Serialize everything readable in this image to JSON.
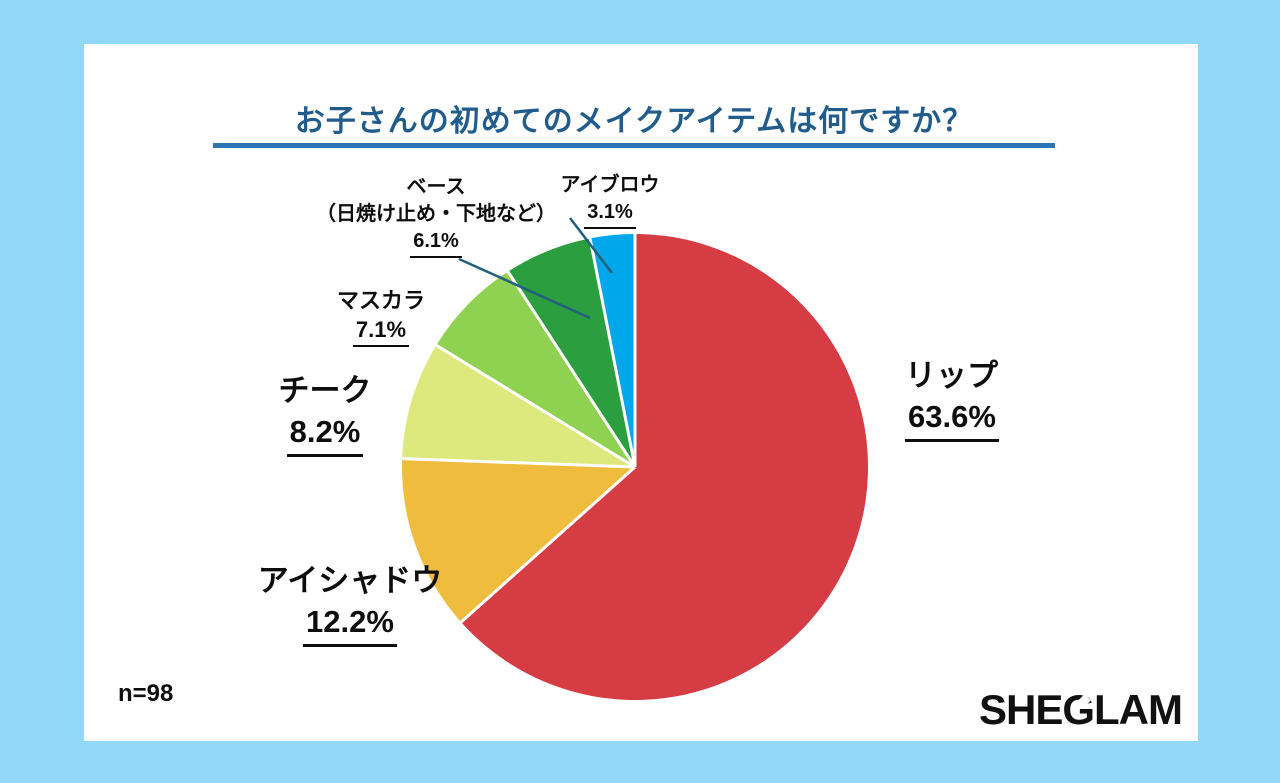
{
  "page": {
    "background_color": "#92D9F7",
    "card_color": "#FFFFFF"
  },
  "header": {
    "title": "お子さんの初めてのメイクアイテムは何ですか？",
    "title_color": "#215C8C",
    "underline_color": "#2E75B6"
  },
  "chart_data": {
    "type": "pie",
    "title": "お子さんの初めてのメイクアイテムは何ですか？",
    "unit": "%",
    "start_angle_deg": 0,
    "direction": "clockwise",
    "legend_position": "labels-around-pie",
    "sample_size": 98,
    "slices": [
      {
        "label": "リップ",
        "value": 63.6,
        "pct_label": "63.6%",
        "color": "#D53C44"
      },
      {
        "label": "アイシャドウ",
        "value": 12.2,
        "pct_label": "12.2%",
        "color": "#F0BC3E"
      },
      {
        "label": "チーク",
        "value": 8.2,
        "pct_label": "8.2%",
        "color": "#DDE87D"
      },
      {
        "label": "マスカラ",
        "value": 7.1,
        "pct_label": "7.1%",
        "color": "#8FD150"
      },
      {
        "label": "ベース",
        "sublabel": "（日焼け止め・下地など）",
        "value": 6.1,
        "pct_label": "6.1%",
        "color": "#2B9E3F"
      },
      {
        "label": "アイブロウ",
        "value": 3.1,
        "pct_label": "3.1%",
        "color": "#00A7EA"
      }
    ]
  },
  "annotations": {
    "leader_line_color": "#235F7E",
    "separator_color": "#FFFFFF"
  },
  "footer": {
    "sample_size_label": "n=98",
    "logo": {
      "part1": "SHE",
      "part2": "G",
      "part3": "LAM"
    }
  }
}
